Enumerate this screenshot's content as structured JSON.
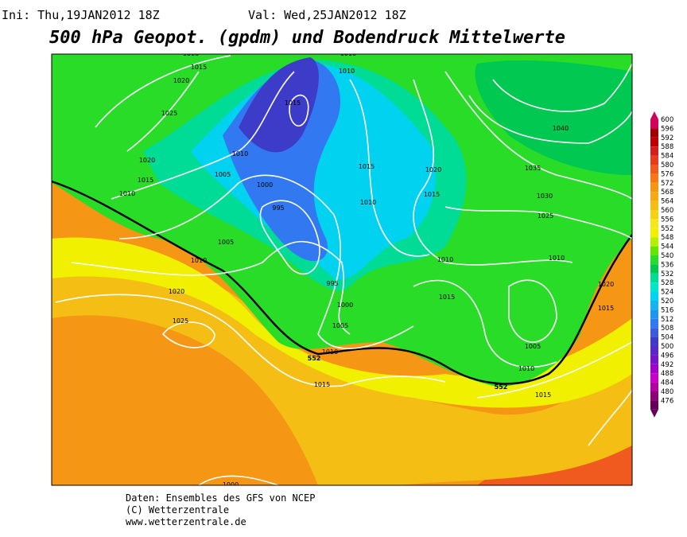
{
  "header": {
    "init": "Ini: Thu,19JAN2012 18Z",
    "valid": "Val: Wed,25JAN2012 18Z",
    "title": "500 hPa Geopot. (gpdm) und Bodendruck Mittelwerte"
  },
  "colorbar": {
    "labels": [
      600,
      596,
      592,
      588,
      584,
      580,
      576,
      572,
      568,
      564,
      560,
      556,
      552,
      548,
      544,
      540,
      536,
      532,
      528,
      524,
      520,
      516,
      512,
      508,
      504,
      500,
      496,
      492,
      488,
      484,
      480,
      476
    ],
    "colors": [
      "#d2005a",
      "#a00000",
      "#be0000",
      "#d21e1e",
      "#e63c1e",
      "#f05a1e",
      "#f57814",
      "#f59614",
      "#f5aa14",
      "#f5be14",
      "#f5d214",
      "#f5e61e",
      "#f0f000",
      "#b4f000",
      "#64e600",
      "#28dc28",
      "#00c850",
      "#00dc96",
      "#00e6c8",
      "#00d2f0",
      "#14b4f0",
      "#1e96f0",
      "#3278f0",
      "#3c5adc",
      "#3c3cc8",
      "#5a28c8",
      "#7814c8",
      "#a000c8",
      "#c800c8",
      "#b400a0",
      "#8c0078",
      "#64005a"
    ]
  },
  "contour_labels": [
    "1010",
    "1015",
    "1020",
    "1025",
    "1020",
    "1015",
    "1010",
    "1010",
    "1010",
    "1015",
    "1010",
    "1005",
    "1000",
    "995",
    "1005",
    "1010",
    "1015",
    "1010",
    "1020",
    "1015",
    "1010",
    "1015",
    "995",
    "1000",
    "1005",
    "1010",
    "552",
    "1015",
    "1020",
    "1025",
    "1040",
    "1035",
    "1030",
    "1025",
    "1010",
    "1020",
    "1015",
    "1005",
    "1010",
    "552",
    "1015",
    "1000"
  ],
  "footer": [
    "Daten: Ensembles des GFS von NCEP",
    "(C) Wetterzentrale",
    "www.wetterzentrale.de"
  ]
}
